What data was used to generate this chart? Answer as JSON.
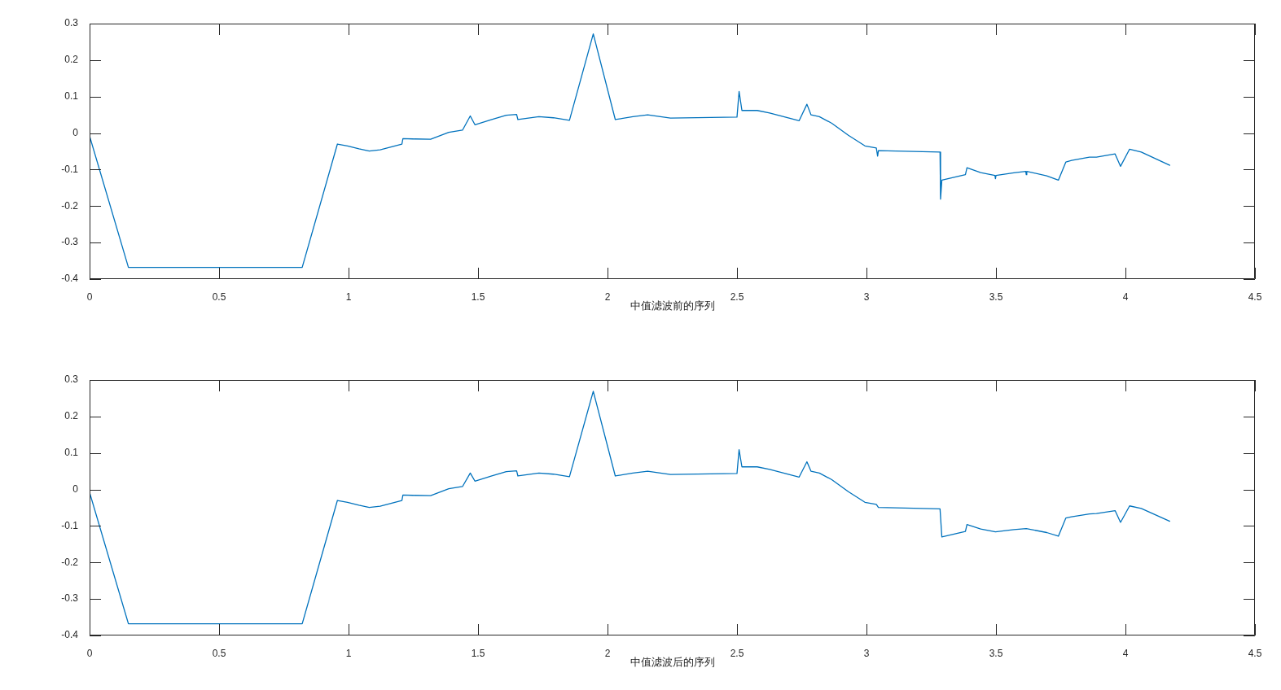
{
  "chart_data": [
    {
      "type": "line",
      "xlabel": "中值滤波前的序列",
      "color": "#0072bd",
      "x": [
        0,
        0.15,
        0.821,
        0.957,
        0.996,
        1.04,
        1.08,
        1.122,
        1.17,
        1.206,
        1.21,
        1.248,
        1.317,
        1.387,
        1.44,
        1.47,
        1.488,
        1.553,
        1.609,
        1.649,
        1.654,
        1.735,
        1.791,
        1.853,
        1.945,
        2.03,
        2.098,
        2.155,
        2.243,
        2.5,
        2.508,
        2.519,
        2.578,
        2.626,
        2.74,
        2.77,
        2.786,
        2.818,
        2.866,
        2.93,
        2.994,
        3.038,
        3.043,
        3.046,
        3.284,
        3.286,
        3.291,
        3.382,
        3.388,
        3.441,
        3.496,
        3.498,
        3.5,
        3.569,
        3.615,
        3.617,
        3.619,
        3.696,
        3.741,
        3.77,
        3.792,
        3.861,
        3.888,
        3.96,
        3.981,
        4.016,
        4.061,
        4.171
      ],
      "values": [
        -0.008,
        -0.368,
        -0.368,
        -0.03,
        -0.035,
        -0.043,
        -0.049,
        -0.046,
        -0.037,
        -0.03,
        -0.015,
        -0.016,
        -0.017,
        0.002,
        0.008,
        0.047,
        0.023,
        0.037,
        0.049,
        0.051,
        0.037,
        0.045,
        0.042,
        0.035,
        0.272,
        0.037,
        0.045,
        0.05,
        0.041,
        0.044,
        0.114,
        0.062,
        0.062,
        0.055,
        0.034,
        0.079,
        0.05,
        0.045,
        0.027,
        -0.006,
        -0.035,
        -0.041,
        -0.063,
        -0.048,
        -0.052,
        -0.181,
        -0.129,
        -0.114,
        -0.095,
        -0.108,
        -0.116,
        -0.125,
        -0.116,
        -0.109,
        -0.105,
        -0.114,
        -0.105,
        -0.117,
        -0.129,
        -0.079,
        -0.075,
        -0.066,
        -0.066,
        -0.057,
        -0.091,
        -0.044,
        -0.052,
        -0.088
      ],
      "xlim": [
        0,
        4.5
      ],
      "xticks": [
        0,
        0.5,
        1,
        1.5,
        2,
        2.5,
        3,
        3.5,
        4,
        4.5
      ],
      "ylim": [
        -0.4,
        0.3
      ],
      "yticks": [
        -0.4,
        -0.3,
        -0.2,
        -0.1,
        0,
        0.1,
        0.2,
        0.3
      ]
    },
    {
      "type": "line",
      "xlabel": "中值滤波后的序列",
      "color": "#0072bd",
      "x": [
        0,
        0.15,
        0.821,
        0.957,
        0.996,
        1.04,
        1.08,
        1.122,
        1.17,
        1.206,
        1.21,
        1.248,
        1.317,
        1.387,
        1.44,
        1.47,
        1.488,
        1.553,
        1.609,
        1.649,
        1.654,
        1.735,
        1.791,
        1.853,
        1.945,
        2.03,
        2.098,
        2.155,
        2.243,
        2.5,
        2.508,
        2.519,
        2.578,
        2.626,
        2.74,
        2.77,
        2.786,
        2.818,
        2.866,
        2.93,
        2.994,
        3.038,
        3.046,
        3.284,
        3.291,
        3.382,
        3.388,
        3.441,
        3.498,
        3.569,
        3.617,
        3.696,
        3.741,
        3.77,
        3.792,
        3.861,
        3.888,
        3.96,
        3.981,
        4.016,
        4.061,
        4.171
      ],
      "values": [
        -0.008,
        -0.368,
        -0.368,
        -0.03,
        -0.035,
        -0.043,
        -0.049,
        -0.046,
        -0.037,
        -0.03,
        -0.015,
        -0.016,
        -0.017,
        0.002,
        0.008,
        0.045,
        0.023,
        0.037,
        0.049,
        0.051,
        0.037,
        0.045,
        0.042,
        0.035,
        0.269,
        0.037,
        0.045,
        0.05,
        0.041,
        0.044,
        0.109,
        0.062,
        0.062,
        0.055,
        0.034,
        0.076,
        0.05,
        0.045,
        0.027,
        -0.006,
        -0.035,
        -0.041,
        -0.049,
        -0.053,
        -0.13,
        -0.115,
        -0.096,
        -0.108,
        -0.116,
        -0.11,
        -0.107,
        -0.118,
        -0.128,
        -0.078,
        -0.075,
        -0.067,
        -0.066,
        -0.058,
        -0.09,
        -0.045,
        -0.052,
        -0.087
      ],
      "xlim": [
        0,
        4.5
      ],
      "xticks": [
        0,
        0.5,
        1,
        1.5,
        2,
        2.5,
        3,
        3.5,
        4,
        4.5
      ],
      "ylim": [
        -0.4,
        0.3
      ],
      "yticks": [
        -0.4,
        -0.3,
        -0.2,
        -0.1,
        0,
        0.1,
        0.2,
        0.3
      ]
    }
  ]
}
